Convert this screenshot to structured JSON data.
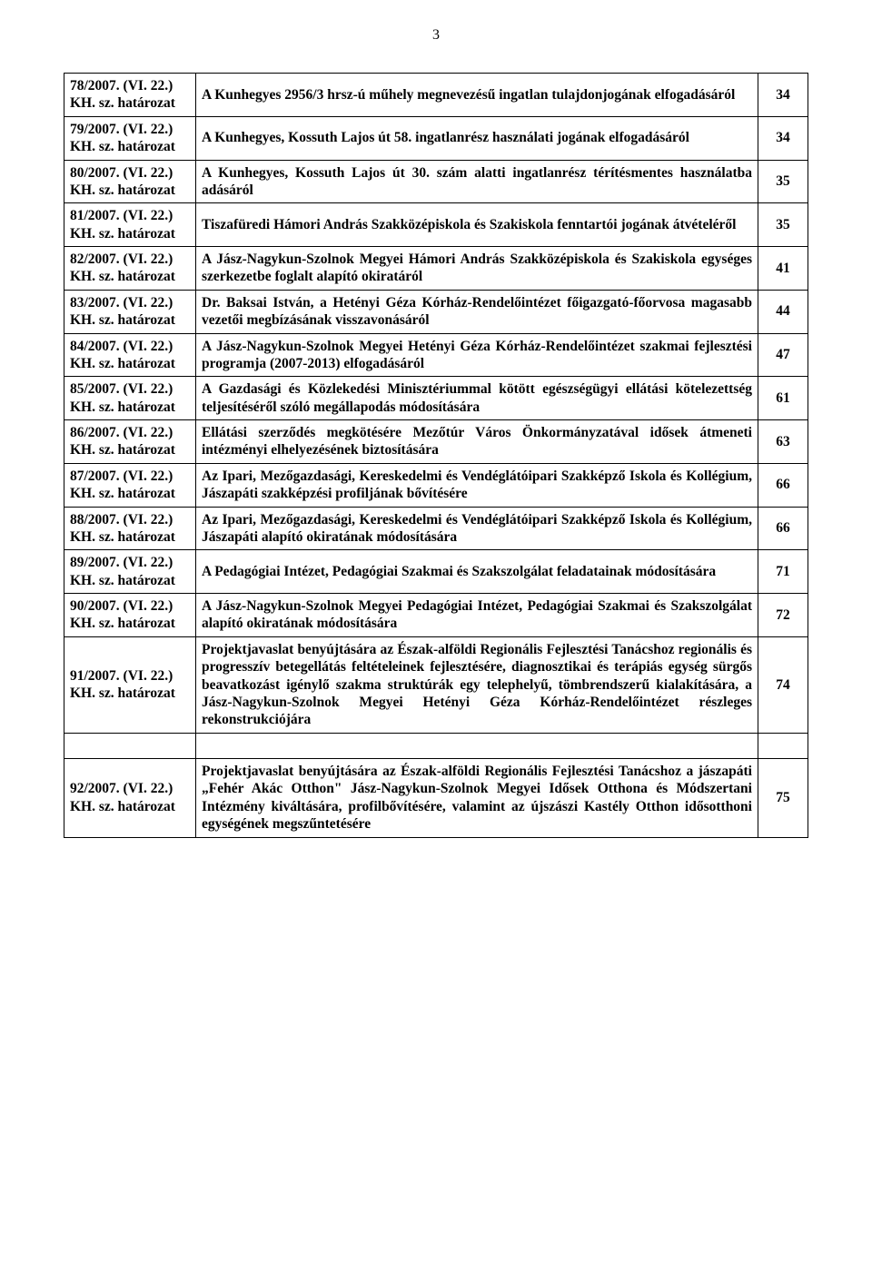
{
  "page_number": "3",
  "rows": [
    {
      "ref": "78/2007. (VI. 22.) KH. sz. határozat",
      "desc": "A Kunhegyes 2956/3 hrsz-ú műhely megnevezésű ingatlan tulajdonjogának elfogadásáról",
      "page": "34"
    },
    {
      "ref": "79/2007. (VI. 22.) KH. sz. határozat",
      "desc": "A Kunhegyes, Kossuth Lajos út 58. ingatlanrész használati jogának elfogadásáról",
      "page": "34"
    },
    {
      "ref": "80/2007. (VI. 22.) KH. sz. határozat",
      "desc": "A Kunhegyes, Kossuth Lajos út 30. szám alatti ingatlanrész térítésmentes használatba adásáról",
      "page": "35"
    },
    {
      "ref": "81/2007. (VI. 22.) KH. sz. határozat",
      "desc": "Tiszafüredi Hámori András Szakközépiskola és Szakiskola fenntartói jogának átvételéről",
      "page": "35"
    },
    {
      "ref": "82/2007. (VI. 22.) KH. sz. határozat",
      "desc": "A Jász-Nagykun-Szolnok Megyei Hámori András Szakközépiskola és Szakiskola egységes szerkezetbe foglalt alapító okiratáról",
      "page": "41"
    },
    {
      "ref": "83/2007. (VI. 22.) KH. sz. határozat",
      "desc": "Dr. Baksai István, a Hetényi Géza Kórház-Rendelőintézet főigazgató-főorvosa magasabb vezetői megbízásának visszavonásáról",
      "page": "44"
    },
    {
      "ref": "84/2007. (VI. 22.) KH. sz. határozat",
      "desc": "A Jász-Nagykun-Szolnok Megyei Hetényi Géza Kórház-Rendelőintézet szakmai fejlesztési programja (2007-2013) elfogadásáról",
      "page": "47"
    },
    {
      "ref": "85/2007. (VI. 22.) KH. sz. határozat",
      "desc": "A Gazdasági és Közlekedési Minisztériummal kötött egészségügyi ellátási kötelezettség teljesítéséről szóló megállapodás módosítására",
      "page": "61"
    },
    {
      "ref": "86/2007. (VI. 22.) KH. sz. határozat",
      "desc": "Ellátási szerződés megkötésére Mezőtúr Város Önkormányzatával idősek átmeneti intézményi elhelyezésének biztosítására",
      "page": "63"
    },
    {
      "ref": "87/2007. (VI. 22.) KH. sz. határozat",
      "desc": "Az Ipari, Mezőgazdasági, Kereskedelmi és Vendéglátóipari Szakképző Iskola és Kollégium, Jászapáti szakképzési profiljának bővítésére",
      "page": "66"
    },
    {
      "ref": "88/2007. (VI. 22.) KH. sz. határozat",
      "desc": "Az Ipari, Mezőgazdasági, Kereskedelmi és Vendéglátóipari Szakképző Iskola és Kollégium, Jászapáti alapító okiratának módosítására",
      "page": "66"
    },
    {
      "ref": "89/2007. (VI. 22.) KH. sz. határozat",
      "desc": "A Pedagógiai Intézet, Pedagógiai Szakmai és Szakszolgálat feladatainak módosítására",
      "page": "71"
    },
    {
      "ref": "90/2007. (VI. 22.) KH. sz. határozat",
      "desc": "A Jász-Nagykun-Szolnok Megyei Pedagógiai Intézet, Pedagógiai Szakmai és Szakszolgálat alapító okiratának módosítására",
      "page": "72"
    },
    {
      "ref": "91/2007. (VI. 22.) KH. sz. határozat",
      "desc": "Projektjavaslat benyújtására az Észak-alföldi Regionális Fejlesztési Tanácshoz regionális és progresszív betegellátás feltételeinek fejlesztésére, diagnosztikai és terápiás egység sürgős beavatkozást igénylő szakma struktúrák egy telephelyű, tömbrendszerű kialakítására, a Jász-Nagykun-Szolnok Megyei Hetényi Géza Kórház-Rendelőintézet részleges rekonstrukciójára",
      "page": "74"
    },
    {
      "ref": "92/2007. (VI. 22.) KH. sz. határozat",
      "desc": "Projektjavaslat benyújtására az Észak-alföldi Regionális Fejlesztési Tanácshoz a jászapáti „Fehér Akác Otthon\" Jász-Nagykun-Szolnok Megyei Idősek Otthona és Módszertani Intézmény kiváltására, profilbővítésére, valamint az újszászi Kastély Otthon idősotthoni egységének megszűntetésére",
      "page": "75"
    }
  ]
}
